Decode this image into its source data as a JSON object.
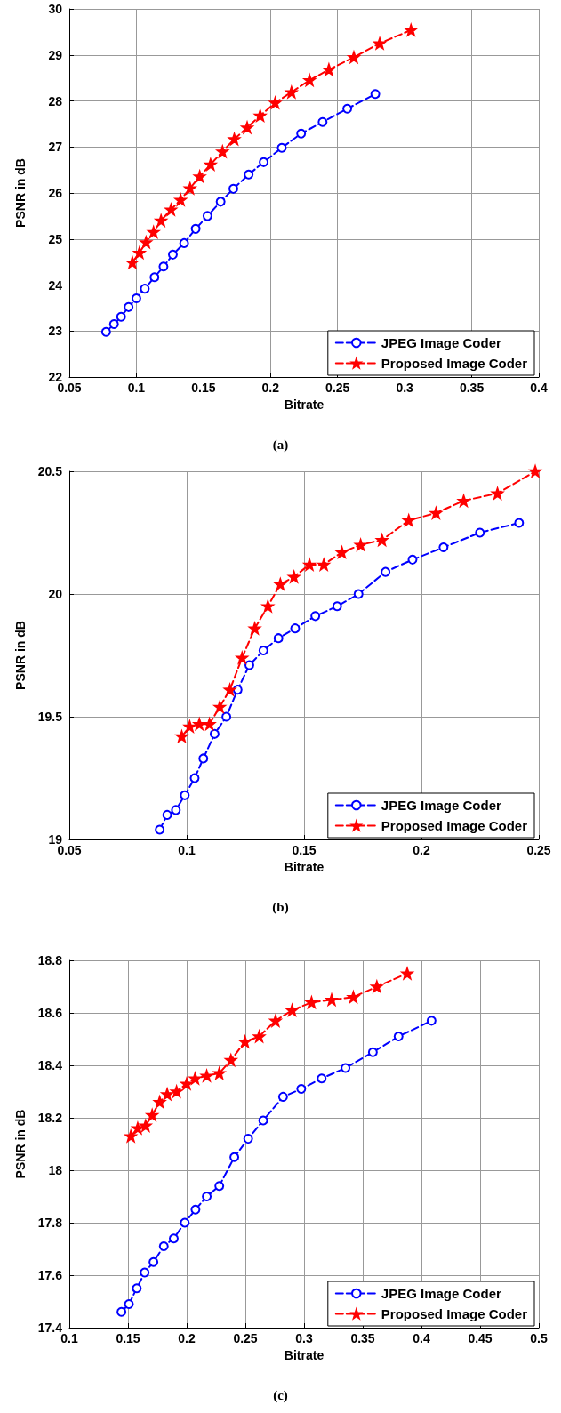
{
  "chart_data": [
    {
      "type": "line",
      "xlabel": "Bitrate",
      "ylabel": "PSNR in dB",
      "annotations": [
        "(a)"
      ],
      "xlim": [
        0.05,
        0.4
      ],
      "xticks": [
        0.05,
        0.1,
        0.15,
        0.2,
        0.25,
        0.3,
        0.35,
        0.4
      ],
      "ylim": [
        22,
        30
      ],
      "yticks": [
        22,
        23,
        24,
        25,
        26,
        27,
        28,
        29,
        30
      ],
      "grid": true,
      "legend": "bottom right",
      "line_style": "dashed",
      "series": [
        {
          "name": "JPEG Image Coder",
          "color": "#0000ff",
          "marker": "circle",
          "x": [
            0.0774,
            0.0833,
            0.0886,
            0.0942,
            0.1,
            0.1063,
            0.1135,
            0.1202,
            0.1272,
            0.1356,
            0.1442,
            0.153,
            0.1628,
            0.1723,
            0.1837,
            0.1949,
            0.2084,
            0.2228,
            0.2388,
            0.2572,
            0.2781
          ],
          "values": [
            22.98,
            23.15,
            23.31,
            23.52,
            23.71,
            23.92,
            24.17,
            24.4,
            24.66,
            24.91,
            25.22,
            25.5,
            25.81,
            26.09,
            26.4,
            26.67,
            26.98,
            27.29,
            27.54,
            27.83,
            28.15
          ]
        },
        {
          "name": "Proposed Image Coder",
          "color": "#ff0000",
          "marker": "star",
          "x": [
            0.097,
            0.1023,
            0.1072,
            0.1128,
            0.1184,
            0.1258,
            0.133,
            0.14,
            0.1472,
            0.1553,
            0.1642,
            0.173,
            0.1826,
            0.1923,
            0.2035,
            0.2156,
            0.2291,
            0.2435,
            0.2621,
            0.2814,
            0.3047
          ],
          "values": [
            24.49,
            24.7,
            24.93,
            25.15,
            25.4,
            25.64,
            25.85,
            26.1,
            26.36,
            26.62,
            26.9,
            27.17,
            27.42,
            27.68,
            27.96,
            28.19,
            28.45,
            28.68,
            28.95,
            29.25,
            29.54
          ]
        }
      ]
    },
    {
      "type": "line",
      "xlabel": "Bitrate",
      "ylabel": "PSNR in dB",
      "annotations": [
        "(b)"
      ],
      "xlim": [
        0.05,
        0.25
      ],
      "xticks": [
        0.05,
        0.1,
        0.15,
        0.2,
        0.25
      ],
      "ylim": [
        19,
        20.5
      ],
      "yticks": [
        19,
        19.5,
        20,
        20.5
      ],
      "grid": true,
      "legend": "bottom right",
      "line_style": "dashed",
      "series": [
        {
          "name": "JPEG Image Coder",
          "color": "#0000ff",
          "marker": "circle",
          "x": [
            0.0885,
            0.0917,
            0.0954,
            0.0992,
            0.1034,
            0.1071,
            0.1119,
            0.1169,
            0.1217,
            0.1267,
            0.1327,
            0.1391,
            0.1462,
            0.1548,
            0.1641,
            0.1732,
            0.1847,
            0.1962,
            0.2094,
            0.2249,
            0.2416
          ],
          "values": [
            19.04,
            19.1,
            19.12,
            19.18,
            19.25,
            19.33,
            19.43,
            19.5,
            19.61,
            19.71,
            19.77,
            19.82,
            19.86,
            19.91,
            19.95,
            20.0,
            20.09,
            20.14,
            20.19,
            20.25,
            20.29
          ]
        },
        {
          "name": "Proposed Image Coder",
          "color": "#ff0000",
          "marker": "star",
          "x": [
            0.0979,
            0.1013,
            0.1054,
            0.1097,
            0.1141,
            0.1184,
            0.1236,
            0.129,
            0.1346,
            0.1399,
            0.1457,
            0.1523,
            0.1584,
            0.1661,
            0.1741,
            0.1832,
            0.1946,
            0.2062,
            0.218,
            0.2324,
            0.2485
          ],
          "values": [
            19.42,
            19.46,
            19.47,
            19.47,
            19.54,
            19.61,
            19.74,
            19.86,
            19.95,
            20.04,
            20.07,
            20.12,
            20.12,
            20.17,
            20.2,
            20.22,
            20.3,
            20.33,
            20.38,
            20.41,
            20.5
          ]
        }
      ]
    },
    {
      "type": "line",
      "xlabel": "Bitrate",
      "ylabel": "PSNR in dB",
      "annotations": [
        "(c)"
      ],
      "xlim": [
        0.1,
        0.5
      ],
      "xticks": [
        0.1,
        0.15,
        0.2,
        0.25,
        0.3,
        0.35,
        0.4,
        0.45,
        0.5
      ],
      "ylim": [
        17.4,
        18.8
      ],
      "yticks": [
        17.4,
        17.6,
        17.8,
        18,
        18.2,
        18.4,
        18.6,
        18.8
      ],
      "grid": true,
      "legend": "bottom right",
      "line_style": "dashed",
      "series": [
        {
          "name": "JPEG Image Coder",
          "color": "#0000ff",
          "marker": "circle",
          "x": [
            0.1444,
            0.1508,
            0.1575,
            0.1642,
            0.1717,
            0.1805,
            0.189,
            0.1984,
            0.2075,
            0.2171,
            0.2278,
            0.2406,
            0.2524,
            0.2652,
            0.2821,
            0.2976,
            0.315,
            0.3353,
            0.3586,
            0.3805,
            0.4086
          ],
          "values": [
            17.46,
            17.49,
            17.55,
            17.61,
            17.65,
            17.71,
            17.74,
            17.8,
            17.85,
            17.9,
            17.94,
            18.05,
            18.12,
            18.19,
            18.28,
            18.31,
            18.35,
            18.39,
            18.45,
            18.51,
            18.57
          ]
        },
        {
          "name": "Proposed Image Coder",
          "color": "#ff0000",
          "marker": "star",
          "x": [
            0.1524,
            0.1583,
            0.165,
            0.1706,
            0.177,
            0.1834,
            0.1914,
            0.2,
            0.2072,
            0.2171,
            0.2278,
            0.2377,
            0.2497,
            0.2618,
            0.2757,
            0.2898,
            0.3064,
            0.3235,
            0.342,
            0.362,
            0.3879
          ],
          "values": [
            18.13,
            18.16,
            18.17,
            18.21,
            18.26,
            18.29,
            18.3,
            18.33,
            18.35,
            18.36,
            18.37,
            18.42,
            18.49,
            18.51,
            18.57,
            18.61,
            18.64,
            18.65,
            18.66,
            18.7,
            18.75
          ]
        }
      ]
    }
  ]
}
